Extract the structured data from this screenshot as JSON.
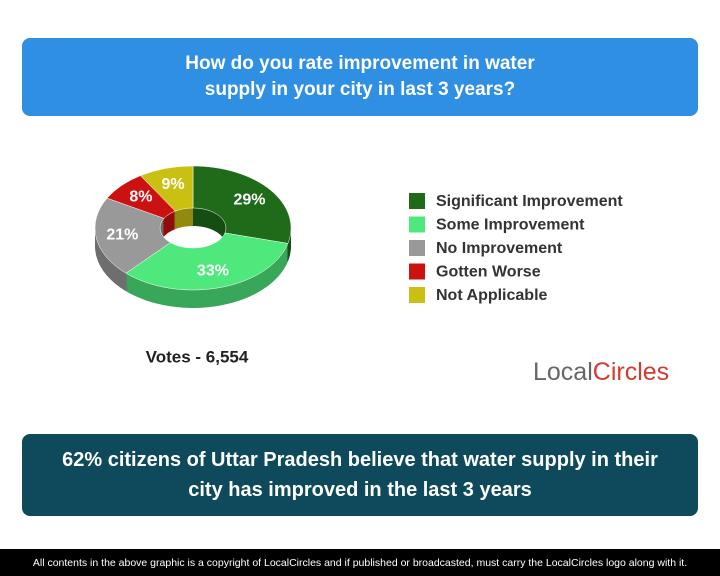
{
  "chart_data": {
    "type": "pie",
    "title": "How do you rate improvement in water supply in your city in last 3 years?",
    "categories": [
      "Significant Improvement",
      "Some Improvement",
      "No Improvement",
      "Gotten Worse",
      "Not Applicable"
    ],
    "values": [
      29,
      33,
      21,
      8,
      9
    ],
    "value_labels": [
      "29%",
      "33%",
      "21%",
      "8%",
      "9%"
    ],
    "colors": [
      "#1f6b1a",
      "#4fe87c",
      "#999999",
      "#cc1111",
      "#c9c012"
    ],
    "note": "Votes - 6,554"
  },
  "logo": [
    "Local",
    "Circles"
  ],
  "conclusion": "62% citizens of Uttar Pradesh believe that water supply in their city has improved in the last 3 years",
  "footer": "All contents in the above graphic is a copyright of LocalCircles and if published or broadcasted, must carry the LocalCircles logo along with it."
}
